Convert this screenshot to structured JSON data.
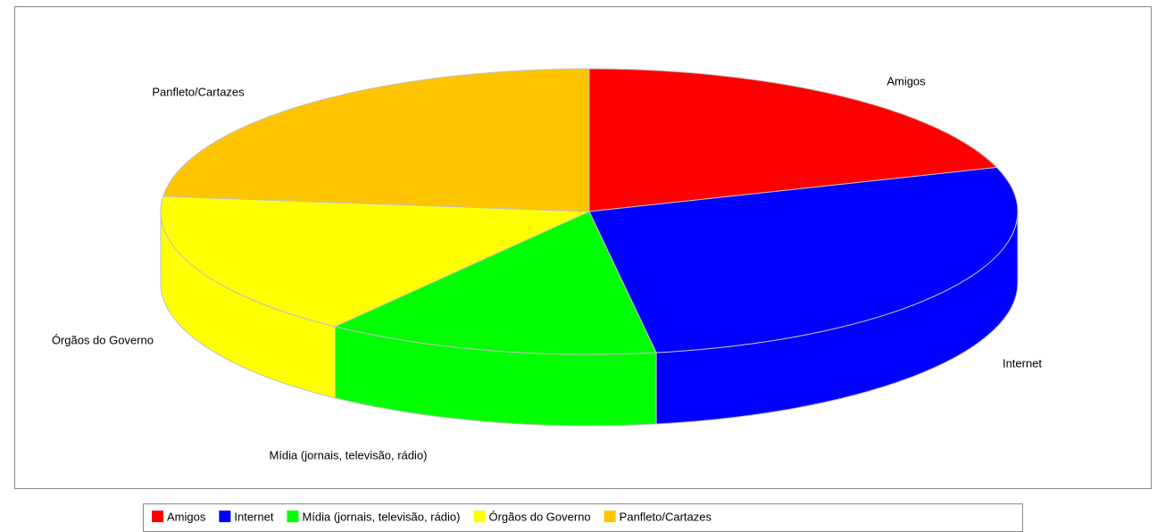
{
  "chart_data": {
    "type": "pie3d",
    "categories": [
      "Amigos",
      "Internet",
      "Mídia (jornais, televisão, rádio)",
      "Órgãos do Governo",
      "Panfleto/Cartazes"
    ],
    "values": [
      20,
      27.5,
      12.6,
      16.6,
      23.3
    ],
    "colors": [
      "#ff0000",
      "#0000ff",
      "#00ff00",
      "#ffff00",
      "#ffc400"
    ],
    "legend": "bottom"
  }
}
